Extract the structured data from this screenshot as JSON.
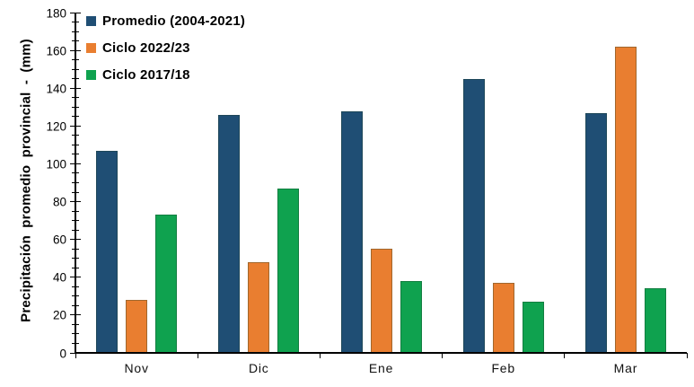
{
  "chart_data": {
    "type": "bar",
    "title": "",
    "ylabel": "Precipitación promedio provincial - (mm)",
    "xlabel": "",
    "categories": [
      "Nov",
      "Dic",
      "Ene",
      "Feb",
      "Mar"
    ],
    "series": [
      {
        "name": "Promedio (2004-2021)",
        "color": "#1F4E74",
        "values": [
          107,
          126,
          128,
          145,
          127
        ]
      },
      {
        "name": "Ciclo 2022/23",
        "color": "#E97E30",
        "values": [
          28,
          48,
          55,
          37,
          162
        ]
      },
      {
        "name": "Ciclo 2017/18",
        "color": "#0FA24F",
        "values": [
          73,
          87,
          38,
          27,
          34
        ]
      }
    ],
    "y_axis": {
      "min": 0,
      "max": 180,
      "major_step": 20,
      "minor_step": 5,
      "tick_labels": [
        "0",
        "20",
        "40",
        "60",
        "80",
        "100",
        "120",
        "140",
        "160",
        "180"
      ]
    },
    "legend_position": "top-left",
    "grid": false
  }
}
